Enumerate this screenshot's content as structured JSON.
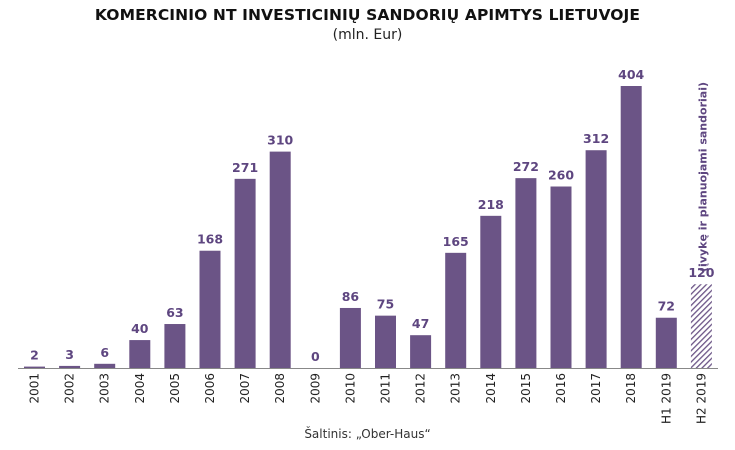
{
  "title": "KOMERCINIO NT INVESTICINIŲ SANDORIŲ APIMTYS LIETUVOJE",
  "subtitle": "(mln. Eur)",
  "source": "Šaltinis: „Ober-Haus“",
  "colors": {
    "bar": "#6b5486",
    "label": "#5e4680",
    "axis": "#888888"
  },
  "chart_data": {
    "type": "bar",
    "categories": [
      "2001",
      "2002",
      "2003",
      "2004",
      "2005",
      "2006",
      "2007",
      "2008",
      "2009",
      "2010",
      "2011",
      "2012",
      "2013",
      "2014",
      "2015",
      "2016",
      "2017",
      "2018",
      "H1 2019",
      "H2 2019"
    ],
    "values": [
      2,
      3,
      6,
      40,
      63,
      168,
      271,
      310,
      0,
      86,
      75,
      47,
      165,
      218,
      272,
      260,
      312,
      404,
      72,
      120
    ],
    "hatched": [
      false,
      false,
      false,
      false,
      false,
      false,
      false,
      false,
      false,
      false,
      false,
      false,
      false,
      false,
      false,
      false,
      false,
      false,
      false,
      true
    ],
    "annotation": "(įvykę ir planuojami sandoriai)",
    "ylim": [
      0,
      404
    ],
    "grid": false,
    "legend": "none"
  }
}
